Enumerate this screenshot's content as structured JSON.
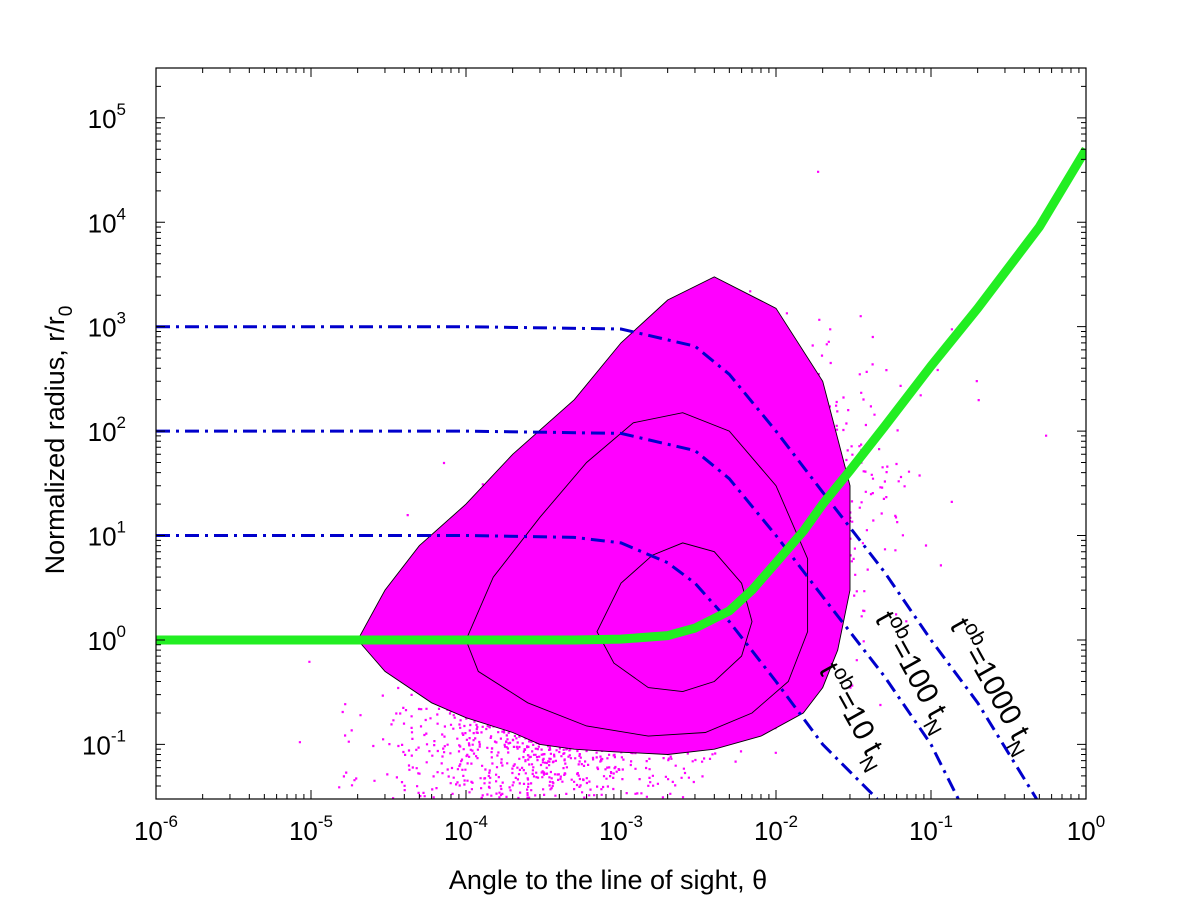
{
  "chart_data": {
    "type": "scatter",
    "title": "",
    "xlabel": "Angle to the line of sight, θ",
    "ylabel": "Normalized radius, r/r",
    "ylabel_sub": "0",
    "x_scale": "log",
    "y_scale": "log",
    "xlim": [
      1e-06,
      1
    ],
    "ylim": [
      0.03,
      300000
    ],
    "x_ticks": [
      {
        "base": "10",
        "exp": "-6",
        "value": 1e-06
      },
      {
        "base": "10",
        "exp": "-5",
        "value": 1e-05
      },
      {
        "base": "10",
        "exp": "-4",
        "value": 0.0001
      },
      {
        "base": "10",
        "exp": "-3",
        "value": 0.001
      },
      {
        "base": "10",
        "exp": "-2",
        "value": 0.01
      },
      {
        "base": "10",
        "exp": "-1",
        "value": 0.1
      },
      {
        "base": "10",
        "exp": "0",
        "value": 1
      }
    ],
    "y_ticks": [
      {
        "base": "10",
        "exp": "-1",
        "value": 0.1
      },
      {
        "base": "10",
        "exp": "0",
        "value": 1
      },
      {
        "base": "10",
        "exp": "1",
        "value": 10
      },
      {
        "base": "10",
        "exp": "2",
        "value": 100
      },
      {
        "base": "10",
        "exp": "3",
        "value": 1000
      },
      {
        "base": "10",
        "exp": "4",
        "value": 10000
      },
      {
        "base": "10",
        "exp": "5",
        "value": 100000
      }
    ],
    "grid": false,
    "legend": "none",
    "colors": {
      "scatter": "#ff00ff",
      "green_curve": "#22ee22",
      "dashdot": "#0000cc",
      "contour": "#000000"
    },
    "scatter_cloud": {
      "description_center_theta": 0.0012,
      "center_r": 1.5,
      "theta_range": [
        2e-06,
        0.08
      ],
      "r_range": [
        0.05,
        250000
      ]
    },
    "green_curve": {
      "x": [
        1e-06,
        1e-05,
        0.0001,
        0.0005,
        0.001,
        0.002,
        0.003,
        0.005,
        0.007,
        0.01,
        0.015,
        0.02,
        0.03,
        0.05,
        0.1,
        0.2,
        0.5,
        1
      ],
      "y": [
        1,
        1,
        1,
        1,
        1.02,
        1.1,
        1.3,
        1.9,
        3.0,
        5.5,
        11,
        20,
        42,
        110,
        420,
        1500,
        9000,
        50000
      ]
    },
    "dashdot_series": [
      {
        "label_base": "t",
        "label_sup": "ob",
        "label_mid": "=10 t",
        "label_sub": "N",
        "plateau": 10,
        "x": [
          1e-06,
          0.0001,
          0.0005,
          0.001,
          0.002,
          0.003,
          0.005,
          0.01,
          0.02,
          0.045
        ],
        "y": [
          10,
          10,
          9.6,
          8.5,
          5.5,
          3.5,
          1.5,
          0.4,
          0.1,
          0.03
        ]
      },
      {
        "label_base": "t",
        "label_sup": "ob",
        "label_mid": "=100 t",
        "label_sub": "N",
        "plateau": 100,
        "x": [
          1e-06,
          0.0001,
          0.001,
          0.003,
          0.005,
          0.01,
          0.02,
          0.05,
          0.1,
          0.15
        ],
        "y": [
          100,
          100,
          95,
          65,
          35,
          10,
          2.6,
          0.45,
          0.1,
          0.03
        ]
      },
      {
        "label_base": "t",
        "label_sup": "ob",
        "label_mid": "=1000 t",
        "label_sub": "N",
        "plateau": 1000,
        "x": [
          1e-06,
          0.0001,
          0.001,
          0.003,
          0.005,
          0.01,
          0.02,
          0.05,
          0.1,
          0.2,
          0.48
        ],
        "y": [
          1000,
          1000,
          950,
          650,
          350,
          100,
          26,
          4.5,
          1,
          0.25,
          0.03
        ]
      }
    ],
    "contours": [
      {
        "level": "outer",
        "theta": [
          2e-05,
          3e-05,
          5e-05,
          0.0001,
          0.0002,
          0.0005,
          0.001,
          0.002,
          0.004,
          0.01,
          0.02,
          0.03,
          0.03,
          0.025,
          0.02,
          0.015,
          0.008,
          0.004,
          0.002,
          0.0009,
          0.0005,
          0.0003,
          0.0002,
          0.0001,
          6e-05,
          3e-05,
          2e-05
        ],
        "r": [
          1,
          3,
          8,
          20,
          60,
          200,
          700,
          1800,
          3000,
          1500,
          300,
          30,
          3,
          0.8,
          0.35,
          0.2,
          0.12,
          0.09,
          0.08,
          0.085,
          0.09,
          0.1,
          0.13,
          0.18,
          0.25,
          0.5,
          1
        ]
      },
      {
        "level": "middle",
        "theta": [
          0.0001,
          0.00015,
          0.0003,
          0.0006,
          0.0012,
          0.0025,
          0.005,
          0.01,
          0.016,
          0.016,
          0.012,
          0.007,
          0.0035,
          0.0015,
          0.0006,
          0.00025,
          0.00012,
          0.0001
        ],
        "r": [
          1,
          4,
          15,
          50,
          120,
          150,
          100,
          30,
          6,
          1.2,
          0.4,
          0.2,
          0.13,
          0.12,
          0.15,
          0.25,
          0.5,
          1
        ]
      },
      {
        "level": "inner",
        "theta": [
          0.0007,
          0.001,
          0.0016,
          0.0025,
          0.004,
          0.006,
          0.007,
          0.006,
          0.004,
          0.0025,
          0.0015,
          0.0009,
          0.0007
        ],
        "r": [
          1.2,
          3.5,
          6.5,
          8.5,
          7,
          3.5,
          1.5,
          0.7,
          0.4,
          0.32,
          0.35,
          0.6,
          1.2
        ]
      }
    ]
  }
}
